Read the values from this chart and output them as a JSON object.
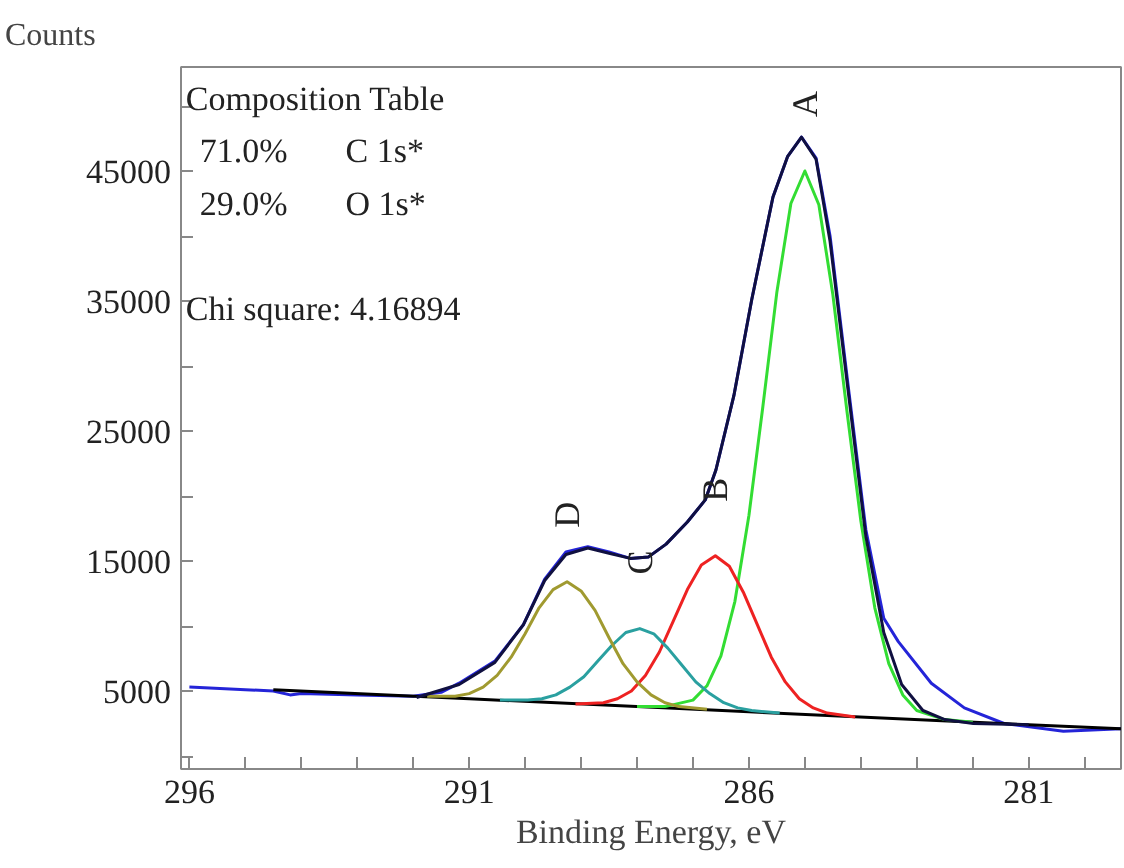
{
  "chart_data": {
    "type": "line",
    "xlabel": "Binding Energy, eV",
    "ylabel": "Counts",
    "xlim": [
      296.15,
      279.35
    ],
    "ylim": [
      -1000,
      53000
    ],
    "xticks": [
      296,
      {
        "value": 295,
        "label": null
      },
      {
        "value": 294,
        "label": null
      },
      {
        "value": 293,
        "label": null
      },
      {
        "value": 292,
        "label": null
      },
      291,
      {
        "value": 290,
        "label": null
      },
      {
        "value": 289,
        "label": null
      },
      {
        "value": 288,
        "label": null
      },
      {
        "value": 287,
        "label": null
      },
      286,
      {
        "value": 285,
        "label": null
      },
      {
        "value": 284,
        "label": null
      },
      {
        "value": 283,
        "label": null
      },
      {
        "value": 282,
        "label": null
      },
      281,
      {
        "value": 280,
        "label": null
      }
    ],
    "yticks": [
      {
        "value": 0,
        "label": null
      },
      5000,
      {
        "value": 10000,
        "label": null
      },
      15000,
      {
        "value": 20000,
        "label": null
      },
      25000,
      {
        "value": 30000,
        "label": null
      },
      35000,
      {
        "value": 40000,
        "label": null
      },
      45000,
      {
        "value": 50000,
        "label": null
      }
    ],
    "grid": false,
    "marker": "none",
    "line_style": "solid",
    "series": [
      {
        "color": "#2424d8",
        "x": [
          296,
          295,
          294.5,
          294.2,
          294,
          293,
          292,
          291.5,
          291.18,
          290.54,
          290.03,
          289.65,
          289.27,
          288.88,
          288.5,
          288.12,
          287.8,
          287.48,
          287.1,
          286.78,
          286.59,
          286.27,
          285.95,
          285.57,
          285.31,
          285.06,
          284.8,
          284.55,
          284.23,
          283.91,
          283.59,
          283.33,
          282.74,
          282.15,
          281.44,
          280.38,
          279.35
        ],
        "values": [
          5300,
          5100,
          5000,
          4700,
          4800,
          4700,
          4600,
          4900,
          5600,
          7300,
          10100,
          13600,
          15700,
          16100,
          15700,
          15200,
          15300,
          16300,
          18000,
          19700,
          22000,
          27700,
          35100,
          43000,
          46100,
          47600,
          46000,
          40000,
          28600,
          17400,
          10600,
          8800,
          5600,
          3700,
          2500,
          1900,
          2100
        ]
      },
      {
        "color": "#000000",
        "x": [
          294.5,
          291,
          286,
          281,
          279.35
        ],
        "values": [
          5100,
          4400,
          3400,
          2400,
          2100
        ]
      },
      {
        "color": "#33dd33",
        "x": [
          288,
          287.5,
          287,
          286.75,
          286.5,
          286.25,
          286,
          285.75,
          285.5,
          285.25,
          285,
          284.75,
          284.5,
          284.25,
          284,
          283.75,
          283.5,
          283.25,
          283,
          282.5,
          282
        ],
        "values": [
          3800,
          3800,
          4300,
          5400,
          7700,
          11900,
          18500,
          26900,
          35700,
          42500,
          45000,
          42400,
          35500,
          26600,
          18100,
          11400,
          7100,
          4700,
          3500,
          2800,
          2600
        ]
      },
      {
        "color": "#ee2222",
        "x": [
          289.1,
          288.6,
          288.35,
          288.1,
          287.85,
          287.6,
          287.35,
          287.1,
          286.85,
          286.6,
          286.35,
          286.1,
          285.85,
          285.6,
          285.35,
          285.1,
          284.85,
          284.6,
          284.1
        ],
        "values": [
          4000,
          4100,
          4400,
          5000,
          6200,
          8000,
          10400,
          12800,
          14700,
          15400,
          14600,
          12600,
          10100,
          7600,
          5700,
          4400,
          3700,
          3300,
          3000
        ]
      },
      {
        "color": "#2aa0a0",
        "x": [
          290.45,
          289.95,
          289.7,
          289.45,
          289.2,
          288.95,
          288.7,
          288.45,
          288.2,
          287.95,
          287.7,
          287.45,
          287.2,
          286.95,
          286.7,
          286.45,
          286.2,
          285.95,
          285.45
        ],
        "values": [
          4300,
          4300,
          4400,
          4700,
          5300,
          6100,
          7300,
          8500,
          9500,
          9800,
          9400,
          8300,
          7000,
          5700,
          4800,
          4100,
          3700,
          3500,
          3300
        ]
      },
      {
        "color": "#a09a30",
        "x": [
          291.75,
          291.25,
          291,
          290.75,
          290.5,
          290.25,
          290,
          289.75,
          289.5,
          289.25,
          289,
          288.75,
          288.5,
          288.25,
          288,
          287.75,
          287.5,
          287.25,
          286.75
        ],
        "values": [
          4600,
          4600,
          4800,
          5300,
          6200,
          7600,
          9400,
          11400,
          12800,
          13400,
          12700,
          11200,
          9100,
          7100,
          5700,
          4700,
          4100,
          3800,
          3600
        ]
      },
      {
        "color": "#101040",
        "x": [
          291.94,
          291.18,
          290.54,
          290.03,
          289.65,
          289.27,
          288.88,
          288.5,
          288.12,
          287.8,
          287.48,
          287.1,
          286.78,
          286.59,
          286.27,
          285.95,
          285.57,
          285.31,
          285.06,
          284.8,
          284.55,
          284.23,
          283.91,
          283.59,
          283.27,
          282.89,
          282.5,
          281.99,
          281
        ],
        "values": [
          4500,
          5500,
          7200,
          10100,
          13500,
          15500,
          16000,
          15600,
          15200,
          15300,
          16300,
          18000,
          19700,
          22000,
          27700,
          35100,
          43000,
          46100,
          47600,
          45900,
          39600,
          28200,
          16900,
          9500,
          5500,
          3500,
          2800,
          2500,
          2400
        ]
      }
    ],
    "annotations": [
      "Composition Table",
      "71.0%",
      "C 1s*",
      "29.0%",
      "O 1s*",
      "Chi square: 4.16894",
      {
        "text": "A",
        "x": 285.0,
        "y": 45000
      },
      {
        "text": "B",
        "x": 286.6,
        "y": 15400
      },
      {
        "text": "C",
        "x": 287.95,
        "y": 9800
      },
      {
        "text": "D",
        "x": 289.25,
        "y": 13400
      }
    ]
  }
}
